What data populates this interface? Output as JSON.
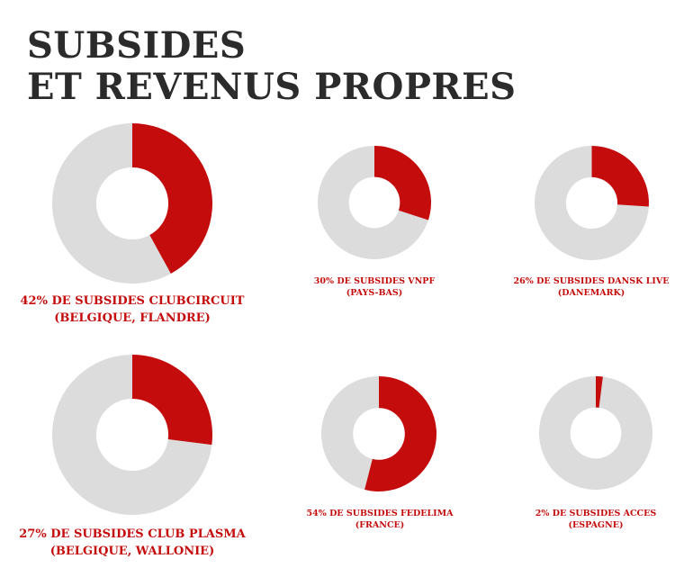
{
  "title": {
    "line1": "SUBSIDES",
    "line2": "ET REVENUS PROPRES"
  },
  "colors": {
    "subsidy": "#c40c0c",
    "remainder": "#dcdcdc",
    "title": "#2b2b2b"
  },
  "chart_data": {
    "type": "pie",
    "variant": "donut",
    "charts": [
      {
        "name": "ClubCircuit",
        "value": 42,
        "caption": [
          "42% DE SUBSIDES CLUBCIRCUIT",
          "(BELGIQUE, FLANDRE)"
        ]
      },
      {
        "name": "VNPF",
        "value": 30,
        "caption": [
          "30% DE SUBSIDES VNPF",
          "(PAYS-BAS)"
        ]
      },
      {
        "name": "Dansk Live",
        "value": 26,
        "caption": [
          "26% DE SUBSIDES DANSK LIVE",
          "(DANEMARK)"
        ]
      },
      {
        "name": "Club Plasma",
        "value": 27,
        "caption": [
          "27% DE SUBSIDES CLUB PLASMA",
          "(BELGIQUE, WALLONIE)"
        ]
      },
      {
        "name": "Fedelima",
        "value": 54,
        "caption": [
          "54% DE SUBSIDES FEDELIMA",
          "(FRANCE)"
        ]
      },
      {
        "name": "ACCES",
        "value": 2,
        "caption": [
          "2% DE SUBSIDES ACCES",
          "(ESPAGNE)"
        ]
      }
    ]
  }
}
